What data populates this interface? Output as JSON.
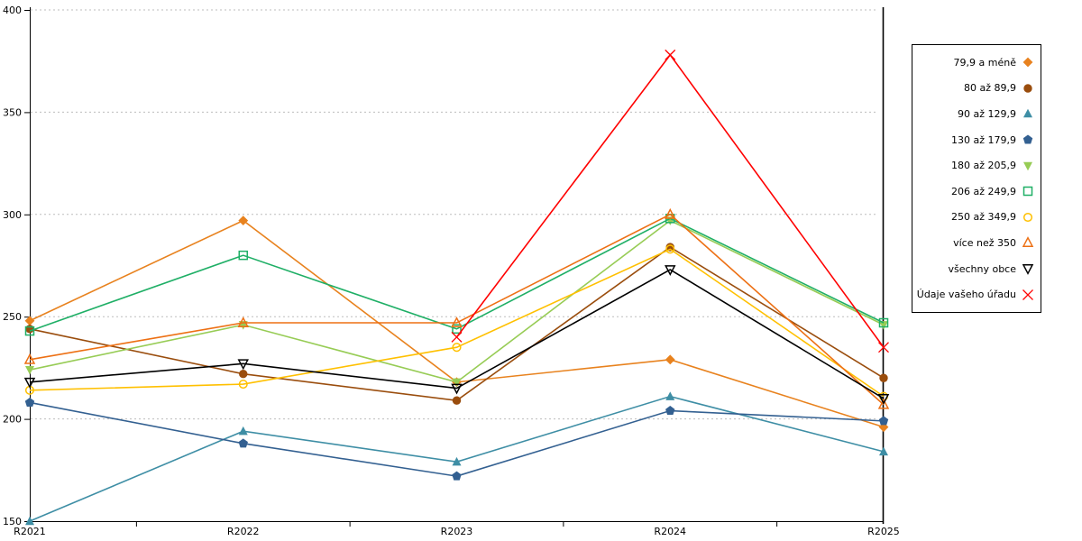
{
  "chart_data": {
    "type": "line",
    "title": "",
    "xlabel": "",
    "ylabel": "",
    "categories": [
      "R2021",
      "R2022",
      "R2023",
      "R2024",
      "R2025"
    ],
    "ylim": [
      150,
      400
    ],
    "y_ticks": [
      150,
      200,
      250,
      300,
      350,
      400
    ],
    "grid": "horizontal dotted",
    "legend_position": "right",
    "colors": {
      "axis": "#000000",
      "gridline": "#bdbdbd",
      "background": "#ffffff"
    },
    "series": [
      {
        "name": "79,9 a méně",
        "color": "#E8821E",
        "marker": "diamond",
        "filled": true,
        "values": [
          248,
          297,
          218,
          229,
          196
        ]
      },
      {
        "name": "80 až 89,9",
        "color": "#9A4D0D",
        "marker": "circle",
        "filled": true,
        "values": [
          244,
          222,
          209,
          284,
          220
        ]
      },
      {
        "name": "90 až 129,9",
        "color": "#3E8EA5",
        "marker": "triangle-up",
        "filled": true,
        "values": [
          150,
          194,
          179,
          211,
          184
        ]
      },
      {
        "name": "130 až 179,9",
        "color": "#336091",
        "marker": "pentagon",
        "filled": true,
        "values": [
          208,
          188,
          172,
          204,
          199
        ]
      },
      {
        "name": "180 až 205,9",
        "color": "#97CC55",
        "marker": "triangle-down",
        "filled": true,
        "values": [
          224,
          246,
          218,
          297,
          246
        ]
      },
      {
        "name": "206 až 249,9",
        "color": "#1FAF66",
        "marker": "square",
        "filled": false,
        "values": [
          243,
          280,
          244,
          298,
          247
        ]
      },
      {
        "name": "250 až 349,9",
        "color": "#FFC000",
        "marker": "circle",
        "filled": false,
        "values": [
          214,
          217,
          235,
          283,
          211
        ]
      },
      {
        "name": "více než 350",
        "color": "#ED7014",
        "marker": "triangle-up",
        "filled": false,
        "values": [
          229,
          247,
          247,
          300,
          207
        ]
      },
      {
        "name": "všechny obce",
        "color": "#000000",
        "marker": "triangle-down",
        "filled": false,
        "values": [
          218,
          227,
          215,
          273,
          210
        ]
      },
      {
        "name": "Údaje vašeho úřadu",
        "color": "#FF0000",
        "marker": "x",
        "filled": false,
        "values": [
          null,
          null,
          240,
          378,
          235
        ]
      }
    ]
  }
}
